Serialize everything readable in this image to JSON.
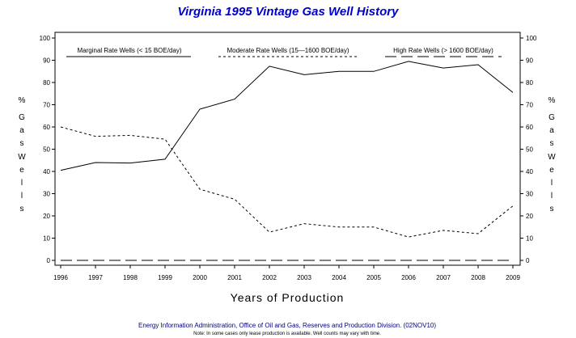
{
  "chart_data": {
    "type": "line",
    "title": "Virginia 1995 Vintage Gas Well History",
    "xlabel": "Years of Production",
    "ylabel_left": [
      "%",
      "G",
      "a",
      "s",
      "W",
      "e",
      "l",
      "l",
      "s"
    ],
    "ylabel_right": [
      "%",
      "G",
      "a",
      "s",
      "W",
      "e",
      "l",
      "l",
      "s"
    ],
    "ylim": [
      0,
      100
    ],
    "yticks": [
      0,
      10,
      20,
      30,
      40,
      50,
      60,
      70,
      80,
      90,
      100
    ],
    "x": [
      "1996",
      "1997",
      "1998",
      "1999",
      "2000",
      "2001",
      "2002",
      "2003",
      "2004",
      "2005",
      "2006",
      "2007",
      "2008",
      "2009"
    ],
    "series": [
      {
        "name": "Marginal Rate Wells (<  15 BOE/day)",
        "style": "solid",
        "values": [
          40.5,
          44,
          43.8,
          45.5,
          68,
          72.5,
          87.3,
          83.5,
          85,
          85,
          89.5,
          86.5,
          88,
          75.5
        ]
      },
      {
        "name": "Moderate Rate Wells (15—1600 BOE/day)",
        "style": "short-dash",
        "values": [
          60,
          55.8,
          56.2,
          54.5,
          32,
          27.5,
          12.7,
          16.5,
          15,
          15,
          10.5,
          13.5,
          12,
          24.5
        ]
      },
      {
        "name": "High Rate Wells (> 1600 BOE/day)",
        "style": "long-dash",
        "values": [
          0,
          0,
          0,
          0,
          0,
          0,
          0,
          0,
          0,
          0,
          0,
          0,
          0,
          0
        ]
      }
    ],
    "legend_position": "top",
    "grid": false,
    "colors": {
      "title": "#0000cc",
      "source": "#000080",
      "lines": "#000000"
    }
  },
  "footer": {
    "source": "Energy Information Administration, Office of Oil and Gas, Reserves and Production Division. (02NOV10)",
    "note": "Note: In some cases only lease production is available. Well counts may vary with time."
  }
}
